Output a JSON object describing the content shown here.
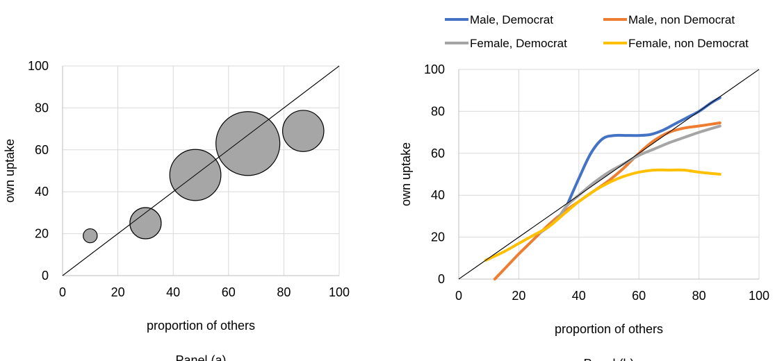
{
  "chart_data": [
    {
      "type": "scatter",
      "subtype": "bubble",
      "panel_label": "Panel (a)",
      "xlabel": "proportion of others",
      "ylabel": "own uptake",
      "xlim": [
        0,
        100
      ],
      "ylim": [
        0,
        100
      ],
      "xticks": [
        "0",
        "20",
        "40",
        "60",
        "80",
        "100"
      ],
      "yticks": [
        "0",
        "20",
        "40",
        "60",
        "80",
        "100"
      ],
      "grid": true,
      "reference_line": "y = x",
      "bubble_color": "#a6a6a6",
      "points": [
        {
          "x": 10,
          "y": 19,
          "size": 0.6
        },
        {
          "x": 30,
          "y": 25,
          "size": 3.0
        },
        {
          "x": 48,
          "y": 48,
          "size": 8.0
        },
        {
          "x": 67,
          "y": 63,
          "size": 12.5
        },
        {
          "x": 87,
          "y": 69,
          "size": 5.2
        }
      ]
    },
    {
      "type": "line",
      "panel_label": "Panel (b)",
      "xlabel": "proportion of others",
      "ylabel": "own uptake",
      "xlim": [
        0,
        100
      ],
      "ylim": [
        0,
        100
      ],
      "xticks": [
        "0",
        "20",
        "40",
        "60",
        "80",
        "100"
      ],
      "yticks": [
        "0",
        "20",
        "40",
        "60",
        "80",
        "100"
      ],
      "grid": true,
      "reference_line": "y = x",
      "legend_position": "top",
      "series": [
        {
          "name": "Male, Democrat",
          "color": "#4472c4",
          "points": [
            [
              36,
              35
            ],
            [
              40,
              48
            ],
            [
              44,
              60
            ],
            [
              48,
              67
            ],
            [
              52,
              68.5
            ],
            [
              56,
              68.5
            ],
            [
              60,
              68.5
            ],
            [
              64,
              69
            ],
            [
              68,
              71
            ],
            [
              72,
              74
            ],
            [
              76,
              77
            ],
            [
              80,
              80
            ],
            [
              84,
              84
            ],
            [
              87,
              86.5
            ]
          ]
        },
        {
          "name": "Male, non Democrat",
          "color": "#ed7d31",
          "points": [
            [
              12,
              0
            ],
            [
              16,
              6
            ],
            [
              20,
              12
            ],
            [
              25,
              19
            ],
            [
              30,
              26
            ],
            [
              35,
              32
            ],
            [
              40,
              37
            ],
            [
              45,
              42
            ],
            [
              50,
              47
            ],
            [
              55,
              53
            ],
            [
              60,
              60
            ],
            [
              65,
              66
            ],
            [
              70,
              70
            ],
            [
              75,
              72
            ],
            [
              80,
              73
            ],
            [
              87,
              74.5
            ]
          ]
        },
        {
          "name": "Female, Democrat",
          "color": "#a5a5a5",
          "points": [
            [
              27,
              22
            ],
            [
              30,
              25
            ],
            [
              33,
              29
            ],
            [
              36,
              35
            ],
            [
              40,
              40
            ],
            [
              45,
              46
            ],
            [
              50,
              51
            ],
            [
              55,
              55
            ],
            [
              60,
              59
            ],
            [
              65,
              62
            ],
            [
              70,
              65
            ],
            [
              75,
              67.5
            ],
            [
              80,
              70
            ],
            [
              87,
              73
            ]
          ]
        },
        {
          "name": "Female, non Democrat",
          "color": "#ffc000",
          "points": [
            [
              9,
              9
            ],
            [
              15,
              13
            ],
            [
              20,
              17
            ],
            [
              25,
              21
            ],
            [
              30,
              25
            ],
            [
              35,
              31
            ],
            [
              40,
              37
            ],
            [
              45,
              42
            ],
            [
              50,
              46
            ],
            [
              55,
              49
            ],
            [
              60,
              51
            ],
            [
              65,
              52
            ],
            [
              70,
              52
            ],
            [
              75,
              52
            ],
            [
              80,
              51
            ],
            [
              87,
              50
            ]
          ]
        }
      ]
    }
  ]
}
